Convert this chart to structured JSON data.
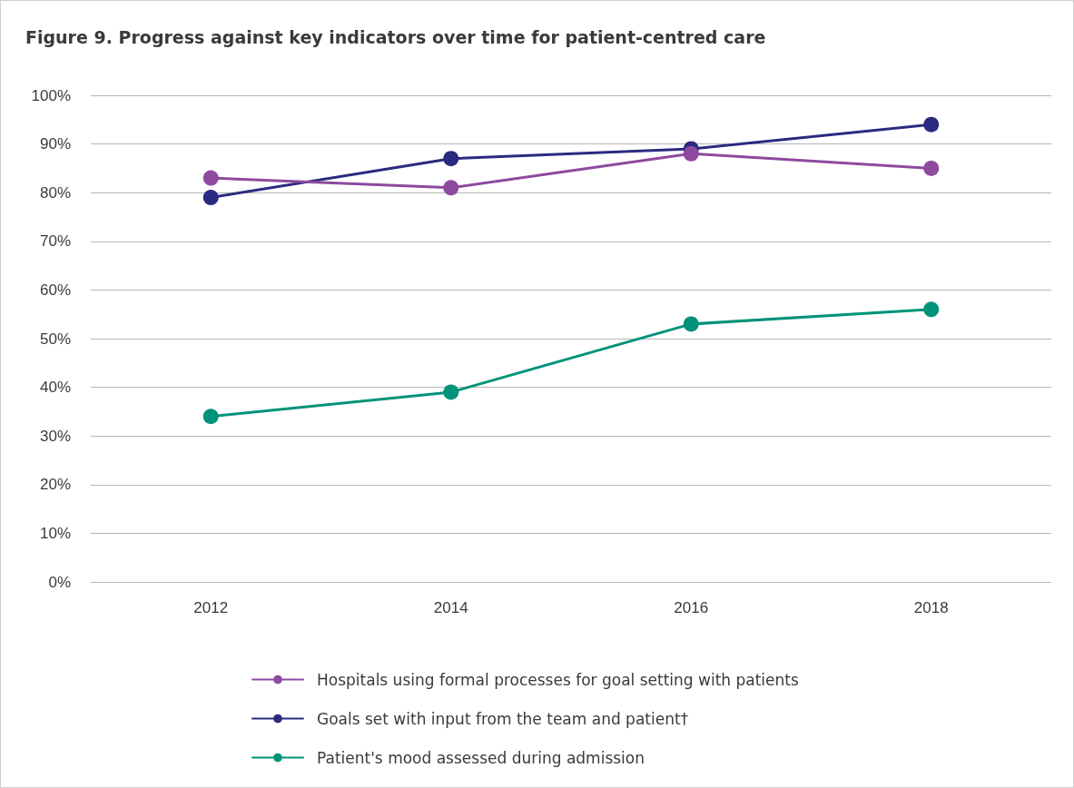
{
  "chart_data": {
    "type": "line",
    "title": "Figure 9. Progress against key indicators over time for patient-centred care",
    "categories": [
      "2012",
      "2014",
      "2016",
      "2018"
    ],
    "series": [
      {
        "name": "Hospitals using formal processes for goal setting with patients",
        "color": "#8e4a9e",
        "values": [
          83,
          81,
          88,
          85
        ]
      },
      {
        "name": "Goals set with input from the team and patient†",
        "color": "#2b2a80",
        "values": [
          79,
          87,
          89,
          94
        ]
      },
      {
        "name": "Patient's mood assessed during admission",
        "color": "#00937a",
        "values": [
          34,
          39,
          53,
          56
        ]
      }
    ],
    "ylim": [
      0,
      100
    ],
    "yticks": [
      {
        "value": 0,
        "label": "0%"
      },
      {
        "value": 10,
        "label": "10%"
      },
      {
        "value": 20,
        "label": "20%"
      },
      {
        "value": 30,
        "label": "30%"
      },
      {
        "value": 40,
        "label": "40%"
      },
      {
        "value": 50,
        "label": "50%"
      },
      {
        "value": 60,
        "label": "60%"
      },
      {
        "value": 70,
        "label": "70%"
      },
      {
        "value": 80,
        "label": "80%"
      },
      {
        "value": 90,
        "label": "90%"
      },
      {
        "value": 100,
        "label": "100%"
      }
    ],
    "grid": "y",
    "legend": "bottom",
    "marker": "circle",
    "line_style": "solid"
  }
}
